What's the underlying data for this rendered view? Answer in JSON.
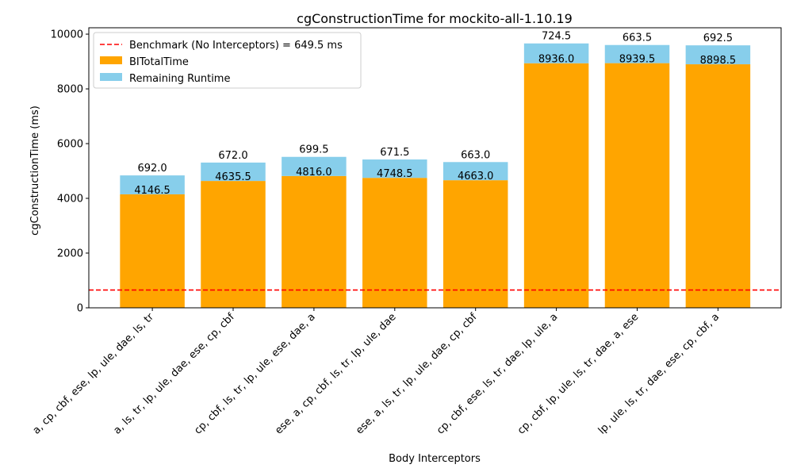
{
  "chart_data": {
    "type": "bar",
    "stacked": true,
    "title": "cgConstructionTime for mockito-all-1.10.19",
    "xlabel": "Body Interceptors",
    "ylabel": "cgConstructionTime (ms)",
    "ylim": [
      0,
      10000
    ],
    "yticks": [
      0,
      2000,
      4000,
      6000,
      8000,
      10000
    ],
    "grid": false,
    "legend_position": "top-left",
    "categories": [
      "a, cp, cbf, ese, lp, ule, dae, ls, tr",
      "a, ls, tr, lp, ule, dae, ese, cp, cbf",
      "cp, cbf, ls, tr, lp, ule, ese, dae, a",
      "ese, a, cp, cbf, ls, tr, lp, ule, dae",
      "ese, a, ls, tr, lp, ule, dae, cp, cbf",
      "cp, cbf, ese, ls, tr, dae, lp, ule, a",
      "cp, cbf, lp, ule, ls, tr, dae, a, ese",
      "lp, ule, ls, tr, dae, ese, cp, cbf, a"
    ],
    "series": [
      {
        "name": "BITotalTime",
        "color": "#FFA500",
        "values": [
          4146.5,
          4635.5,
          4816.0,
          4748.5,
          4663.0,
          8936.0,
          8939.5,
          8898.5
        ],
        "labels": [
          "4146.5",
          "4635.5",
          "4816.0",
          "4748.5",
          "4663.0",
          "8936.0",
          "8939.5",
          "8898.5"
        ]
      },
      {
        "name": "Remaining Runtime",
        "color": "#87CEEB",
        "values": [
          692.0,
          672.0,
          699.5,
          671.5,
          663.0,
          724.5,
          663.5,
          692.5
        ],
        "labels": [
          "692.0",
          "672.0",
          "699.5",
          "671.5",
          "663.0",
          "724.5",
          "663.5",
          "692.5"
        ]
      }
    ],
    "reference_line": {
      "name": "Benchmark (No Interceptors) = 649.5 ms",
      "value": 649.5,
      "color": "#FF0000",
      "style": "dashed"
    }
  }
}
